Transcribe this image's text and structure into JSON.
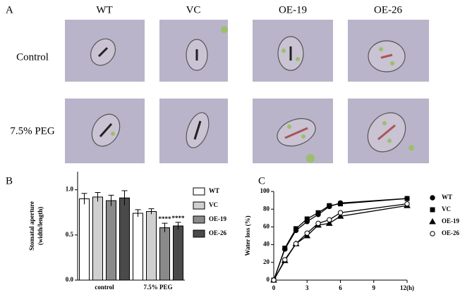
{
  "panel_a": {
    "label": "A",
    "columns": [
      "WT",
      "VC",
      "OE-19",
      "OE-26"
    ],
    "rows": [
      "Control",
      "7.5% PEG"
    ]
  },
  "chart_data": [
    {
      "type": "bar",
      "panel_label": "B",
      "ylabel": [
        "Stomatal aperture",
        "(width/length)"
      ],
      "categories": [
        "control",
        "7.5% PEG"
      ],
      "series": [
        {
          "name": "WT",
          "color": "#ffffff",
          "values": [
            0.9,
            0.74
          ],
          "errors": [
            0.06,
            0.04
          ],
          "sig_labels": [
            null,
            null
          ]
        },
        {
          "name": "VC",
          "color": "#d0d0d0",
          "values": [
            0.92,
            0.76
          ],
          "errors": [
            0.05,
            0.03
          ],
          "sig_labels": [
            null,
            null
          ]
        },
        {
          "name": "OE-19",
          "color": "#8a8a8a",
          "values": [
            0.88,
            0.58
          ],
          "errors": [
            0.06,
            0.05
          ],
          "sig_labels": [
            null,
            "****"
          ]
        },
        {
          "name": "OE-26",
          "color": "#4a4a4a",
          "values": [
            0.91,
            0.6
          ],
          "errors": [
            0.08,
            0.04
          ],
          "sig_labels": [
            null,
            "****"
          ]
        }
      ],
      "ylim": [
        0,
        1.2
      ],
      "yticks": [
        {
          "value": 0,
          "label": "0.0"
        },
        0.5,
        {
          "value": 1,
          "label": "1.0"
        }
      ]
    },
    {
      "type": "line",
      "panel_label": "C",
      "ylabel": "Water loss (%)",
      "x": [
        0,
        1,
        2,
        3,
        4,
        5,
        6,
        12
      ],
      "series": [
        {
          "name": "WT",
          "color": "#000000",
          "marker": "circle",
          "values": [
            0,
            35,
            56,
            66,
            74,
            83,
            87,
            92
          ]
        },
        {
          "name": "VC",
          "color": "#000000",
          "marker": "square",
          "values": [
            0,
            36,
            58,
            69,
            76,
            84,
            86,
            92
          ]
        },
        {
          "name": "OE-19",
          "color": "#000000",
          "marker": "triangle",
          "values": [
            0,
            22,
            41,
            50,
            62,
            64,
            72,
            84
          ]
        },
        {
          "name": "OE-26",
          "color": "#000000",
          "marker": "open-circle",
          "values": [
            0,
            23,
            41,
            53,
            64,
            68,
            76,
            86
          ]
        }
      ],
      "xlim": [
        0,
        12
      ],
      "xticks": [
        0,
        3,
        6,
        9,
        {
          "value": 12,
          "label": "12(h)"
        }
      ],
      "ylim": [
        0,
        100
      ],
      "yticks": [
        0,
        20,
        40,
        60,
        80,
        100
      ]
    }
  ]
}
